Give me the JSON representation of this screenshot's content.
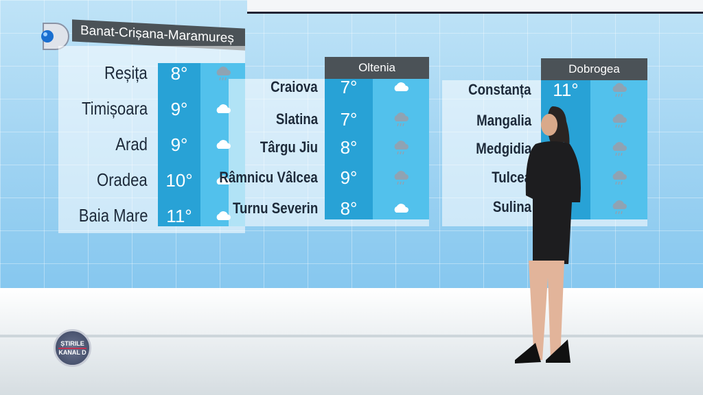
{
  "broadcaster_logo": "Kanal D",
  "show_badge": {
    "line1": "ȘTIRILE",
    "line2": "KANAL D"
  },
  "regions": [
    {
      "title": "Banat-Crișana-Maramureș",
      "rows": [
        {
          "city": "Reșița",
          "temp": "8°",
          "icon": "rain-cloud-icon"
        },
        {
          "city": "Timișoara",
          "temp": "9°",
          "icon": "cloud-icon"
        },
        {
          "city": "Arad",
          "temp": "9°",
          "icon": "cloud-icon"
        },
        {
          "city": "Oradea",
          "temp": "10°",
          "icon": "cloud-icon"
        },
        {
          "city": "Baia Mare",
          "temp": "11°",
          "icon": "cloud-icon"
        }
      ]
    },
    {
      "title": "Oltenia",
      "rows": [
        {
          "city": "Craiova",
          "temp": "7°",
          "icon": "cloud-icon"
        },
        {
          "city": "Slatina",
          "temp": "7°",
          "icon": "rain-cloud-icon"
        },
        {
          "city": "Târgu Jiu",
          "temp": "8°",
          "icon": "rain-cloud-icon"
        },
        {
          "city": "Râmnicu Vâlcea",
          "temp": "9°",
          "icon": "rain-cloud-icon"
        },
        {
          "city": "Turnu Severin",
          "temp": "8°",
          "icon": "cloud-icon"
        }
      ]
    },
    {
      "title": "Dobrogea",
      "rows": [
        {
          "city": "Constanța",
          "temp": "11°",
          "icon": "rain-cloud-icon"
        },
        {
          "city": "Mangalia",
          "temp": "",
          "icon": "rain-cloud-icon"
        },
        {
          "city": "Medgidia",
          "temp": "",
          "icon": "rain-cloud-icon"
        },
        {
          "city": "Tulcea",
          "temp": "",
          "icon": "rain-cloud-icon"
        },
        {
          "city": "Sulina",
          "temp": "",
          "icon": "rain-cloud-icon"
        }
      ]
    }
  ]
}
